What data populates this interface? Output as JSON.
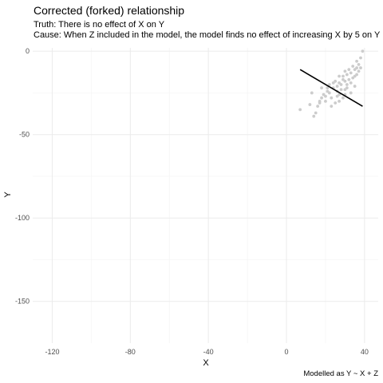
{
  "title": "Corrected (forked) relationship",
  "subtitle_lines": [
    "Truth: There is no effect of X on Y",
    "Cause: When Z included in the model, the model finds no effect of increasing X by 5 on Y"
  ],
  "caption": "Modelled as Y ~ X + Z",
  "chart_data": {
    "type": "scatter",
    "xlabel": "X",
    "ylabel": "Y",
    "xlim": [
      -130,
      47
    ],
    "ylim": [
      -175,
      2
    ],
    "x_ticks": [
      -120,
      -80,
      -40,
      0,
      40
    ],
    "y_ticks": [
      0,
      -50,
      -100,
      -150
    ],
    "grid": true,
    "point_color": "#cccccc",
    "line_color": "#000000",
    "points": [
      [
        7,
        -35
      ],
      [
        12,
        -32
      ],
      [
        13,
        -25
      ],
      [
        14,
        -39
      ],
      [
        15,
        -37
      ],
      [
        16,
        -33
      ],
      [
        17,
        -30
      ],
      [
        17,
        -31
      ],
      [
        18,
        -28
      ],
      [
        18,
        -22
      ],
      [
        19,
        -26
      ],
      [
        20,
        -30
      ],
      [
        20,
        -27
      ],
      [
        21,
        -24
      ],
      [
        22,
        -20
      ],
      [
        22,
        -25
      ],
      [
        23,
        -33
      ],
      [
        23,
        -28
      ],
      [
        24,
        -22
      ],
      [
        24,
        -19
      ],
      [
        25,
        -18
      ],
      [
        25,
        -31
      ],
      [
        26,
        -27
      ],
      [
        26,
        -24
      ],
      [
        26,
        -21
      ],
      [
        27,
        -15
      ],
      [
        27,
        -19
      ],
      [
        27,
        -26
      ],
      [
        28,
        -23
      ],
      [
        28,
        -20
      ],
      [
        29,
        -15
      ],
      [
        29,
        -17
      ],
      [
        29,
        -28
      ],
      [
        30,
        -23
      ],
      [
        30,
        -18
      ],
      [
        30,
        -12
      ],
      [
        31,
        -14
      ],
      [
        31,
        -20
      ],
      [
        31,
        -22
      ],
      [
        32,
        -17
      ],
      [
        32,
        -11
      ],
      [
        33,
        -13
      ],
      [
        33,
        -19
      ],
      [
        33,
        -25
      ],
      [
        34,
        -9
      ],
      [
        34,
        -16
      ],
      [
        35,
        -11
      ],
      [
        35,
        -15
      ],
      [
        35,
        -21
      ],
      [
        36,
        -6
      ],
      [
        36,
        -10
      ],
      [
        36,
        -14
      ],
      [
        37,
        -12
      ],
      [
        37,
        -8
      ],
      [
        38,
        -4
      ],
      [
        38,
        -10
      ],
      [
        39,
        0
      ],
      [
        30,
        -26
      ],
      [
        27,
        -30
      ],
      [
        21,
        -22
      ]
    ],
    "fit_line": {
      "x": [
        7,
        39
      ],
      "y": [
        -11,
        -33
      ]
    }
  }
}
